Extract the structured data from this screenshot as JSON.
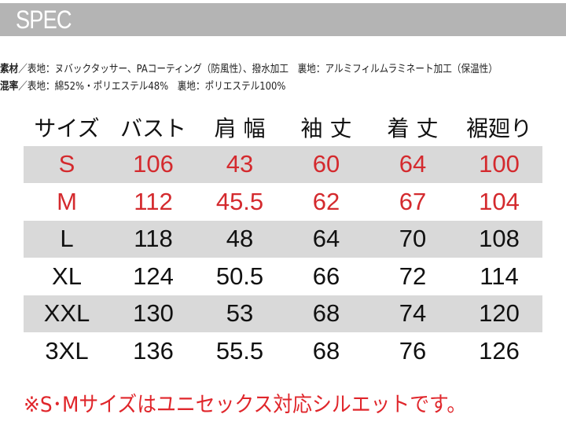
{
  "title": "SPEC",
  "material": {
    "label": "素材",
    "text": "／表地：ヌバックタッサー、PAコーティング（防風性）、撥水加工　裏地：アルミフィルムラミネート加工（保温性）"
  },
  "blend": {
    "label": "混率",
    "text": "／表地：綿52%・ポリエステル48%　裏地：ポリエステル100%"
  },
  "table": {
    "headers": [
      "サイズ",
      "バスト",
      "肩 幅",
      "袖 丈",
      "着 丈",
      "裾廻り"
    ],
    "rows": [
      [
        "S",
        "106",
        "43",
        "60",
        "64",
        "100"
      ],
      [
        "M",
        "112",
        "45.5",
        "62",
        "67",
        "104"
      ],
      [
        "L",
        "118",
        "48",
        "64",
        "70",
        "108"
      ],
      [
        "XL",
        "124",
        "50.5",
        "66",
        "72",
        "114"
      ],
      [
        "XXL",
        "130",
        "53",
        "68",
        "74",
        "120"
      ],
      [
        "3XL",
        "136",
        "55.5",
        "68",
        "76",
        "126"
      ]
    ]
  },
  "note": "※S･Mサイズはユニセックス対応シルエットです。",
  "colors": {
    "accent_red": "#d42a2e",
    "band_gray": "#b4b4b4",
    "row_shade": "#d9d9d9"
  }
}
